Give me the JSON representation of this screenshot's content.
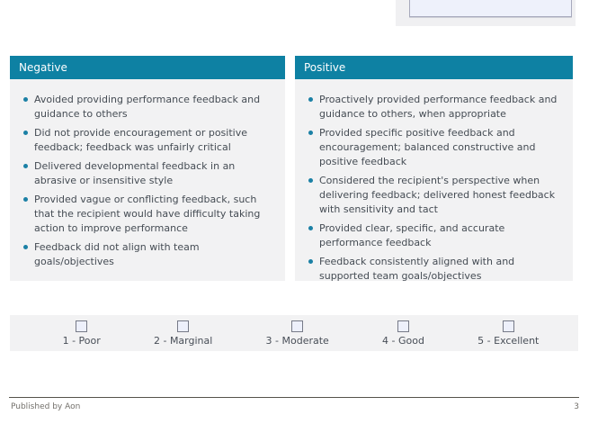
{
  "columns": [
    {
      "title": "Negative",
      "items": [
        "Avoided providing performance feedback and guidance to others",
        "Did not provide encouragement or positive feedback; feedback was unfairly critical",
        "Delivered developmental feedback in an abrasive or insensitive style",
        "Provided vague or conflicting feedback, such that the recipient would have difficulty taking action to improve performance",
        "Feedback did not align with team goals/objectives"
      ]
    },
    {
      "title": "Positive",
      "items": [
        "Proactively provided performance feedback and guidance to others, when appropriate",
        "Provided specific positive feedback and encouragement; balanced constructive and positive feedback",
        "Considered the recipient's perspective when delivering feedback; delivered honest feedback with sensitivity and tact",
        "Provided clear, specific, and accurate performance feedback",
        "Feedback consistently aligned with and supported team goals/objectives"
      ]
    }
  ],
  "rating": {
    "options": [
      {
        "label": "1 - Poor",
        "checked": false
      },
      {
        "label": "2 - Marginal",
        "checked": false
      },
      {
        "label": "3 - Moderate",
        "checked": false
      },
      {
        "label": "4 - Good",
        "checked": false
      },
      {
        "label": "5 - Excellent",
        "checked": false
      }
    ]
  },
  "footer": {
    "published": "Published by Aon",
    "page": "3"
  },
  "colors": {
    "header_teal": "#0e81a3",
    "bullet_teal": "#1b80a5",
    "panel_gray": "#f2f2f3",
    "comment_box_fill": "#eef1fb",
    "text": "#454c54"
  }
}
